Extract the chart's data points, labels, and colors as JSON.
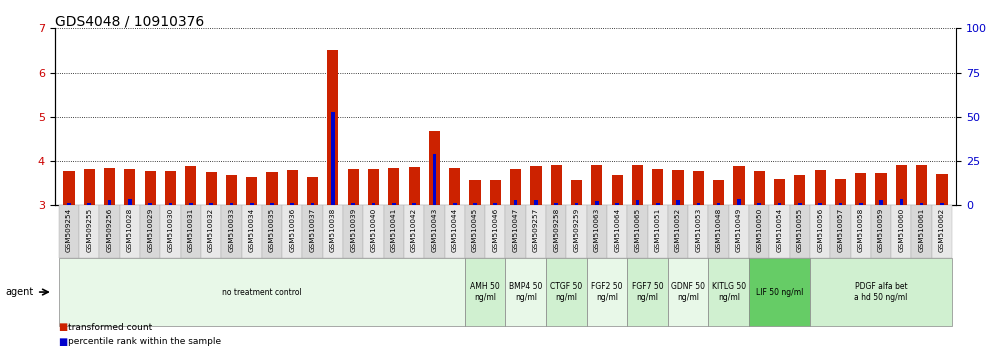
{
  "title": "GDS4048 / 10910376",
  "samples": [
    "GSM509254",
    "GSM509255",
    "GSM509256",
    "GSM510028",
    "GSM510029",
    "GSM510030",
    "GSM510031",
    "GSM510032",
    "GSM510033",
    "GSM510034",
    "GSM510035",
    "GSM510036",
    "GSM510037",
    "GSM510038",
    "GSM510039",
    "GSM510040",
    "GSM510041",
    "GSM510042",
    "GSM510043",
    "GSM510044",
    "GSM510045",
    "GSM510046",
    "GSM510047",
    "GSM509257",
    "GSM509258",
    "GSM509259",
    "GSM510063",
    "GSM510064",
    "GSM510065",
    "GSM510051",
    "GSM510052",
    "GSM510053",
    "GSM510048",
    "GSM510049",
    "GSM510050",
    "GSM510054",
    "GSM510055",
    "GSM510056",
    "GSM510057",
    "GSM510058",
    "GSM510059",
    "GSM510060",
    "GSM510061",
    "GSM510062"
  ],
  "red_values": [
    3.78,
    3.83,
    3.85,
    3.82,
    3.78,
    3.77,
    3.88,
    3.75,
    3.68,
    3.65,
    3.75,
    3.8,
    3.63,
    6.52,
    3.83,
    3.83,
    3.85,
    3.87,
    4.68,
    3.85,
    3.58,
    3.58,
    3.82,
    3.88,
    3.92,
    3.58,
    3.9,
    3.68,
    3.9,
    3.83,
    3.8,
    3.78,
    3.58,
    3.88,
    3.78,
    3.6,
    3.68,
    3.8,
    3.6,
    3.72,
    3.73,
    3.9,
    3.9,
    3.7
  ],
  "blue_values_pct": [
    1.5,
    1.5,
    3.0,
    3.5,
    1.5,
    1.5,
    1.5,
    1.5,
    1.5,
    1.5,
    1.5,
    1.5,
    1.5,
    53.0,
    1.5,
    1.5,
    1.5,
    1.5,
    29.0,
    1.5,
    1.5,
    1.5,
    3.0,
    3.0,
    1.5,
    1.5,
    2.5,
    1.5,
    3.0,
    1.5,
    3.0,
    1.5,
    1.5,
    3.5,
    1.5,
    1.5,
    1.5,
    1.5,
    1.5,
    1.5,
    3.0,
    3.5,
    1.5,
    1.5
  ],
  "ylim_left": [
    3.0,
    7.0
  ],
  "yticks_left": [
    3,
    4,
    5,
    6,
    7
  ],
  "ylim_right": [
    0,
    100
  ],
  "yticks_right": [
    0,
    25,
    50,
    75,
    100
  ],
  "groups": [
    {
      "label": "no treatment control",
      "start": 0,
      "end": 20,
      "color": "#e8f8e8"
    },
    {
      "label": "AMH 50\nng/ml",
      "start": 20,
      "end": 22,
      "color": "#d0f0d0"
    },
    {
      "label": "BMP4 50\nng/ml",
      "start": 22,
      "end": 24,
      "color": "#e8f8e8"
    },
    {
      "label": "CTGF 50\nng/ml",
      "start": 24,
      "end": 26,
      "color": "#d0f0d0"
    },
    {
      "label": "FGF2 50\nng/ml",
      "start": 26,
      "end": 28,
      "color": "#e8f8e8"
    },
    {
      "label": "FGF7 50\nng/ml",
      "start": 28,
      "end": 30,
      "color": "#d0f0d0"
    },
    {
      "label": "GDNF 50\nng/ml",
      "start": 30,
      "end": 32,
      "color": "#e8f8e8"
    },
    {
      "label": "KITLG 50\nng/ml",
      "start": 32,
      "end": 34,
      "color": "#d0f0d0"
    },
    {
      "label": "LIF 50 ng/ml",
      "start": 34,
      "end": 37,
      "color": "#66cc66"
    },
    {
      "label": "PDGF alfa bet\na hd 50 ng/ml",
      "start": 37,
      "end": 44,
      "color": "#d0f0d0"
    }
  ],
  "red_color": "#cc2200",
  "blue_color": "#0000cc",
  "left_axis_color": "#cc0000",
  "right_axis_color": "#0000cc",
  "title_fontsize": 10,
  "tick_fontsize": 6,
  "axis_tick_fontsize": 8
}
